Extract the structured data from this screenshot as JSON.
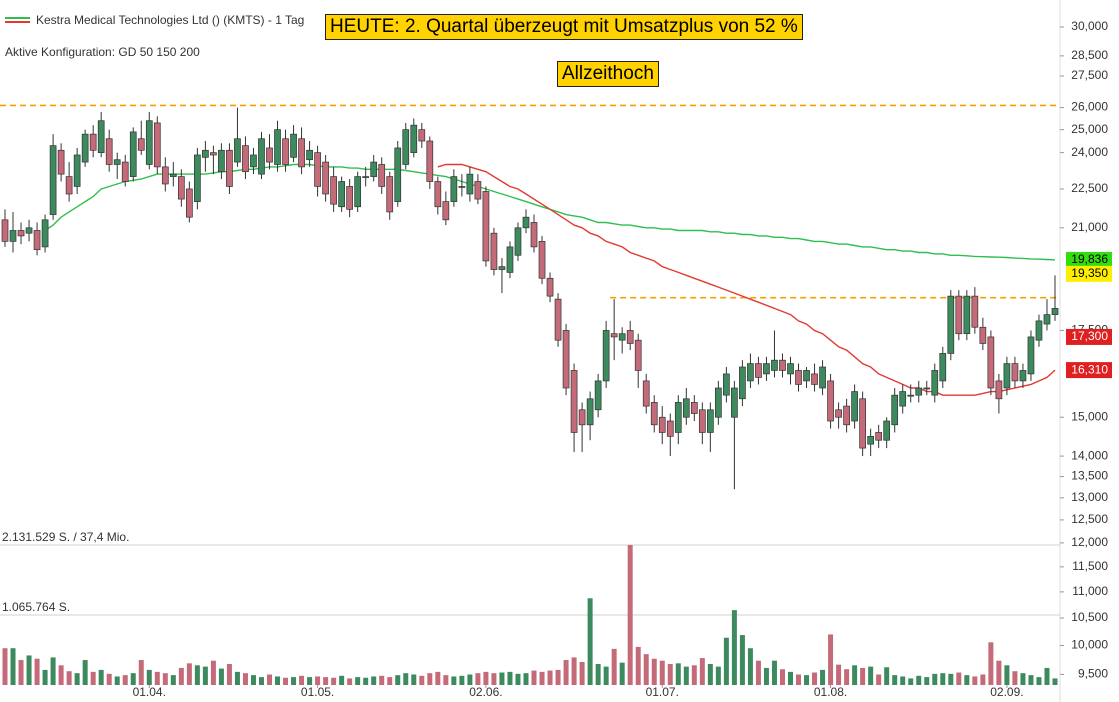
{
  "chart_data": {
    "type": "candlestick",
    "title": "Kestra Medical Technologies Ltd () (KMTS) - 1 Tag",
    "subtitle": "Aktive Konfiguration: GD 50 150 200",
    "annotations": [
      "HEUTE: 2. Quartal überzeugt mit Umsatzplus von 52 %",
      "Allzeithoch"
    ],
    "log_scale": true,
    "ylim": [
      9.323,
      31.473
    ],
    "yticks": [
      {
        "value": 30,
        "label": "30,000"
      },
      {
        "value": 28.5,
        "label": "28,500"
      },
      {
        "value": 27.5,
        "label": "27,500"
      },
      {
        "value": 26,
        "label": "26,000"
      },
      {
        "value": 25,
        "label": "25,000"
      },
      {
        "value": 24,
        "label": "24,000"
      },
      {
        "value": 22.5,
        "label": "22,500"
      },
      {
        "value": 21,
        "label": "21,000"
      },
      {
        "value": 17.5,
        "label": "17,500"
      },
      {
        "value": 15,
        "label": "15,000"
      },
      {
        "value": 14,
        "label": "14,000"
      },
      {
        "value": 13.5,
        "label": "13,500"
      },
      {
        "value": 13,
        "label": "13,000"
      },
      {
        "value": 12.5,
        "label": "12,500"
      },
      {
        "value": 12,
        "label": "12,000"
      },
      {
        "value": 11.5,
        "label": "11,500"
      },
      {
        "value": 11,
        "label": "11,000"
      },
      {
        "value": 10.5,
        "label": "10,500"
      },
      {
        "value": 10,
        "label": "10,000"
      },
      {
        "value": 9.5,
        "label": "9,500"
      }
    ],
    "up_color": "#3c8a5e",
    "down_color": "#c46a78",
    "categories": [
      null,
      null,
      null,
      null,
      null,
      null,
      null,
      null,
      null,
      null,
      null,
      null,
      null,
      null,
      null,
      null,
      null,
      null,
      "01.04.",
      null,
      null,
      null,
      null,
      null,
      null,
      null,
      null,
      null,
      null,
      null,
      null,
      null,
      null,
      null,
      null,
      null,
      null,
      null,
      null,
      "01.05.",
      null,
      null,
      null,
      null,
      null,
      null,
      null,
      null,
      null,
      null,
      null,
      null,
      null,
      null,
      null,
      null,
      null,
      null,
      null,
      null,
      "02.06.",
      null,
      null,
      null,
      null,
      null,
      null,
      null,
      null,
      null,
      null,
      null,
      null,
      null,
      null,
      null,
      null,
      null,
      null,
      null,
      null,
      null,
      "01.07.",
      null,
      null,
      null,
      null,
      null,
      null,
      null,
      null,
      null,
      null,
      null,
      null,
      null,
      null,
      null,
      null,
      null,
      null,
      null,
      null,
      "01.08.",
      null,
      null,
      null,
      null,
      null,
      null,
      null,
      null,
      null,
      null,
      null,
      null,
      null,
      null,
      null,
      null,
      null,
      null,
      null,
      null,
      null,
      "02.09.",
      null,
      null,
      null,
      null,
      null,
      null
    ],
    "open": [
      21.3,
      20.5,
      20.9,
      20.8,
      20.9,
      20.3,
      21.5,
      24.1,
      23.0,
      22.6,
      23.6,
      24.8,
      24.0,
      24.6,
      23.5,
      23.6,
      23.0,
      24.6,
      23.5,
      25.3,
      23.4,
      23.0,
      23.0,
      22.5,
      22.0,
      23.8,
      24.0,
      23.2,
      24.1,
      23.6,
      24.3,
      23.4,
      23.1,
      24.2,
      23.5,
      24.6,
      23.8,
      24.6,
      23.7,
      24.0,
      23.6,
      23.0,
      21.8,
      22.6,
      21.8,
      23.0,
      23.0,
      23.5,
      23.0,
      22.0,
      23.5,
      24.0,
      25.0,
      24.5,
      22.8,
      22.0,
      22.0,
      22.6,
      22.3,
      22.8,
      22.4,
      20.8,
      19.5,
      19.4,
      20.0,
      21.0,
      21.2,
      20.5,
      19.2,
      18.5,
      17.5,
      16.3,
      15.2,
      14.8,
      15.2,
      16.0,
      17.4,
      17.2,
      17.5,
      17.2,
      16.0,
      15.4,
      15.0,
      14.9,
      14.6,
      15.0,
      15.4,
      15.2,
      14.6,
      15.0,
      15.6,
      15.0,
      15.5,
      16.0,
      16.5,
      16.2,
      16.3,
      16.6,
      16.2,
      16.3,
      16.0,
      16.2,
      15.8,
      16.0,
      15.2,
      15.3,
      14.9,
      15.5,
      14.3,
      14.6,
      14.4,
      14.8,
      15.3,
      15.6,
      15.6,
      15.8,
      15.6,
      16.0,
      16.8,
      18.6,
      17.4,
      18.6,
      17.6,
      17.3,
      16.0,
      15.8,
      16.5,
      16.0,
      16.2,
      17.2,
      17.7,
      18.0
    ],
    "high": [
      21.7,
      21.6,
      21.2,
      21.3,
      21.2,
      21.5,
      24.8,
      24.4,
      23.6,
      24.2,
      25.0,
      25.2,
      25.8,
      25.0,
      24.0,
      23.9,
      25.1,
      25.4,
      25.8,
      25.6,
      23.8,
      23.6,
      23.3,
      22.8,
      24.2,
      24.5,
      24.3,
      24.4,
      24.4,
      26.0,
      24.7,
      24.2,
      24.9,
      24.8,
      25.4,
      25.0,
      25.2,
      25.1,
      24.5,
      24.3,
      23.9,
      23.4,
      23.0,
      22.9,
      23.2,
      23.4,
      23.9,
      23.8,
      23.2,
      24.5,
      25.3,
      25.5,
      25.3,
      24.7,
      23.0,
      22.4,
      23.3,
      23.1,
      23.4,
      23.1,
      22.6,
      21.0,
      19.9,
      20.5,
      21.2,
      21.7,
      21.5,
      20.7,
      19.4,
      18.7,
      17.7,
      16.5,
      15.4,
      15.7,
      16.2,
      17.8,
      18.5,
      17.6,
      17.8,
      17.4,
      16.2,
      15.6,
      15.3,
      15.1,
      15.6,
      15.8,
      15.6,
      15.4,
      15.4,
      16.0,
      16.4,
      16.0,
      16.6,
      16.8,
      16.7,
      16.7,
      17.5,
      16.8,
      16.7,
      16.5,
      16.4,
      16.5,
      16.6,
      16.2,
      15.4,
      15.5,
      15.9,
      15.7,
      14.7,
      14.8,
      15.0,
      15.8,
      15.9,
      15.9,
      16.0,
      16.0,
      16.5,
      17.0,
      18.8,
      18.8,
      18.8,
      18.9,
      17.9,
      17.5,
      16.2,
      16.7,
      16.7,
      16.5,
      17.5,
      18.0,
      18.5,
      19.3
    ],
    "low": [
      20.3,
      20.1,
      20.4,
      20.5,
      20.0,
      20.1,
      21.3,
      22.8,
      22.0,
      22.3,
      23.4,
      23.8,
      23.8,
      23.2,
      22.9,
      22.6,
      22.8,
      23.9,
      23.3,
      23.1,
      22.4,
      22.6,
      21.8,
      21.2,
      21.7,
      23.2,
      23.1,
      22.9,
      22.3,
      23.4,
      22.9,
      23.1,
      22.9,
      23.3,
      23.2,
      23.2,
      23.6,
      23.1,
      23.4,
      22.2,
      22.0,
      21.6,
      21.6,
      21.4,
      21.6,
      22.6,
      22.8,
      22.3,
      21.3,
      21.8,
      23.3,
      23.8,
      24.2,
      22.5,
      21.5,
      21.1,
      21.8,
      22.2,
      22.0,
      21.9,
      19.6,
      19.3,
      18.7,
      19.2,
      19.8,
      20.8,
      20.1,
      19.0,
      18.4,
      17.0,
      15.6,
      14.1,
      14.1,
      14.4,
      15.0,
      15.8,
      16.6,
      16.8,
      16.9,
      15.8,
      15.1,
      14.6,
      14.3,
      14.0,
      14.3,
      14.8,
      14.9,
      14.3,
      14.1,
      14.8,
      15.4,
      13.2,
      15.3,
      15.8,
      15.9,
      16.0,
      16.1,
      16.1,
      15.9,
      15.7,
      15.8,
      15.7,
      15.6,
      14.7,
      14.7,
      14.6,
      14.7,
      14.0,
      14.0,
      14.2,
      14.2,
      14.6,
      15.1,
      15.4,
      15.4,
      15.6,
      15.4,
      15.8,
      16.6,
      17.2,
      17.2,
      17.4,
      16.9,
      15.6,
      15.1,
      15.6,
      15.8,
      15.8,
      16.0,
      17.0,
      17.5,
      17.8
    ],
    "close": [
      20.5,
      20.9,
      20.7,
      21.0,
      20.2,
      21.3,
      24.3,
      23.1,
      22.3,
      23.9,
      24.8,
      24.1,
      25.4,
      23.5,
      23.7,
      22.8,
      24.9,
      24.1,
      25.4,
      23.4,
      22.7,
      23.1,
      22.1,
      21.4,
      23.9,
      24.1,
      23.9,
      24.1,
      22.6,
      24.6,
      23.2,
      23.9,
      24.6,
      23.6,
      25.0,
      23.5,
      24.8,
      23.4,
      24.1,
      22.6,
      22.3,
      21.9,
      22.8,
      21.7,
      23.0,
      23.0,
      23.6,
      22.6,
      21.6,
      24.2,
      25.0,
      25.2,
      24.5,
      22.8,
      21.8,
      21.3,
      23.0,
      22.6,
      23.1,
      22.1,
      19.8,
      19.5,
      19.6,
      20.3,
      21.0,
      21.4,
      20.3,
      19.2,
      18.6,
      17.2,
      15.8,
      14.6,
      14.8,
      15.5,
      16.0,
      17.5,
      17.3,
      17.4,
      17.1,
      16.3,
      15.3,
      14.8,
      14.6,
      14.5,
      15.4,
      15.5,
      15.1,
      14.6,
      15.2,
      15.8,
      16.2,
      15.8,
      16.4,
      16.5,
      16.1,
      16.5,
      16.6,
      16.3,
      16.5,
      15.9,
      16.3,
      15.9,
      16.4,
      14.9,
      15.0,
      14.8,
      15.7,
      14.2,
      14.5,
      14.4,
      14.9,
      15.6,
      15.7,
      15.6,
      15.8,
      15.8,
      16.3,
      16.8,
      18.6,
      17.4,
      18.6,
      17.6,
      17.1,
      15.8,
      15.5,
      16.5,
      16.0,
      16.3,
      17.3,
      17.8,
      18.0,
      18.2
    ],
    "series": [
      {
        "color": "#2fbf4f",
        "values": [
          null,
          null,
          null,
          null,
          null,
          20.9,
          21.1,
          21.4,
          21.6,
          21.8,
          22.0,
          22.2,
          22.5,
          22.6,
          22.7,
          22.8,
          22.85,
          22.9,
          23.0,
          23.1,
          23.1,
          23.1,
          23.1,
          23.1,
          23.1,
          23.1,
          23.15,
          23.2,
          23.2,
          23.25,
          23.3,
          23.3,
          23.35,
          23.4,
          23.4,
          23.45,
          23.5,
          23.5,
          23.5,
          23.45,
          23.4,
          23.4,
          23.4,
          23.35,
          23.35,
          23.3,
          23.3,
          23.3,
          23.3,
          23.3,
          23.25,
          23.2,
          23.15,
          23.1,
          23.05,
          23.0,
          22.9,
          22.8,
          22.7,
          22.6,
          22.5,
          22.4,
          22.3,
          22.2,
          22.1,
          22.0,
          21.9,
          21.8,
          21.7,
          21.6,
          21.5,
          21.45,
          21.4,
          21.3,
          21.2,
          21.2,
          21.15,
          21.1,
          21.1,
          21.05,
          21.0,
          21.0,
          20.95,
          20.95,
          20.9,
          20.9,
          20.9,
          20.9,
          20.85,
          20.85,
          20.8,
          20.8,
          20.75,
          20.75,
          20.7,
          20.7,
          20.65,
          20.65,
          20.6,
          20.6,
          20.55,
          20.5,
          20.5,
          20.45,
          20.4,
          20.4,
          20.35,
          20.3,
          20.3,
          20.25,
          20.2,
          20.2,
          20.15,
          20.15,
          20.1,
          20.1,
          20.05,
          20.05,
          20.0,
          20.0,
          19.98,
          19.96,
          19.95,
          19.94,
          19.93,
          19.92,
          19.9,
          19.89,
          19.87,
          19.86,
          19.85,
          19.836
        ]
      },
      {
        "color": "#e23a32",
        "values": [
          null,
          null,
          null,
          null,
          null,
          null,
          null,
          null,
          null,
          null,
          null,
          null,
          null,
          null,
          null,
          null,
          null,
          null,
          null,
          null,
          null,
          null,
          null,
          null,
          null,
          null,
          null,
          null,
          null,
          null,
          null,
          null,
          null,
          null,
          null,
          null,
          null,
          null,
          null,
          null,
          null,
          null,
          null,
          null,
          null,
          null,
          null,
          null,
          null,
          null,
          null,
          null,
          null,
          null,
          23.4,
          23.5,
          23.5,
          23.5,
          23.4,
          23.3,
          23.2,
          23.0,
          22.8,
          22.6,
          22.5,
          22.3,
          22.1,
          21.9,
          21.7,
          21.5,
          21.3,
          21.1,
          21.0,
          20.8,
          20.7,
          20.5,
          20.4,
          20.3,
          20.1,
          20.0,
          19.9,
          19.8,
          19.6,
          19.5,
          19.4,
          19.3,
          19.2,
          19.1,
          19.0,
          18.9,
          18.8,
          18.7,
          18.6,
          18.5,
          18.4,
          18.3,
          18.2,
          18.1,
          18.0,
          17.8,
          17.7,
          17.5,
          17.4,
          17.2,
          17.0,
          16.9,
          16.7,
          16.5,
          16.4,
          16.2,
          16.1,
          16.0,
          15.9,
          15.8,
          15.8,
          15.7,
          15.7,
          15.6,
          15.6,
          15.6,
          15.6,
          15.6,
          15.65,
          15.7,
          15.7,
          15.75,
          15.8,
          15.85,
          15.9,
          16.0,
          16.1,
          16.31
        ]
      }
    ],
    "hlines": [
      {
        "value": 26.1,
        "color": "#f5a000"
      },
      {
        "value": 18.55,
        "color": "#f5a000",
        "from": 76
      }
    ],
    "price_labels": [
      {
        "value": 19.836,
        "label": "19,836",
        "color": "#33dd11"
      },
      {
        "value": 19.35,
        "label": "19,350",
        "color": "#ffee00"
      },
      {
        "value": 17.3,
        "label": "17,300",
        "color": "#e02020"
      },
      {
        "value": 16.31,
        "label": "16,310",
        "color": "#e02020"
      }
    ],
    "volume": {
      "ylim": [
        0,
        2131529
      ],
      "yticks": [
        {
          "value": 2131529,
          "label": "2.131.529 S. / 37,4 Mio."
        },
        {
          "value": 1065764,
          "label": "1.065.764 S."
        }
      ],
      "values": [
        560000,
        560000,
        380000,
        450000,
        400000,
        230000,
        420000,
        300000,
        210000,
        180000,
        380000,
        200000,
        230000,
        170000,
        130000,
        150000,
        180000,
        380000,
        230000,
        200000,
        180000,
        150000,
        260000,
        330000,
        300000,
        280000,
        370000,
        250000,
        320000,
        200000,
        180000,
        150000,
        120000,
        160000,
        130000,
        110000,
        120000,
        140000,
        120000,
        130000,
        120000,
        110000,
        140000,
        100000,
        120000,
        110000,
        130000,
        140000,
        120000,
        150000,
        180000,
        160000,
        140000,
        180000,
        200000,
        150000,
        130000,
        140000,
        160000,
        180000,
        200000,
        180000,
        190000,
        200000,
        170000,
        180000,
        220000,
        200000,
        220000,
        230000,
        380000,
        420000,
        350000,
        1320000,
        320000,
        280000,
        550000,
        340000,
        2131529,
        580000,
        470000,
        400000,
        370000,
        320000,
        330000,
        280000,
        300000,
        410000,
        320000,
        280000,
        720000,
        1140000,
        760000,
        560000,
        370000,
        260000,
        370000,
        240000,
        200000,
        160000,
        150000,
        190000,
        230000,
        770000,
        310000,
        240000,
        300000,
        260000,
        280000,
        160000,
        270000,
        150000,
        130000,
        100000,
        140000,
        120000,
        170000,
        180000,
        170000,
        190000,
        150000,
        130000,
        160000,
        650000,
        370000,
        300000,
        210000,
        180000,
        150000,
        120000,
        260000,
        100000
      ]
    }
  }
}
